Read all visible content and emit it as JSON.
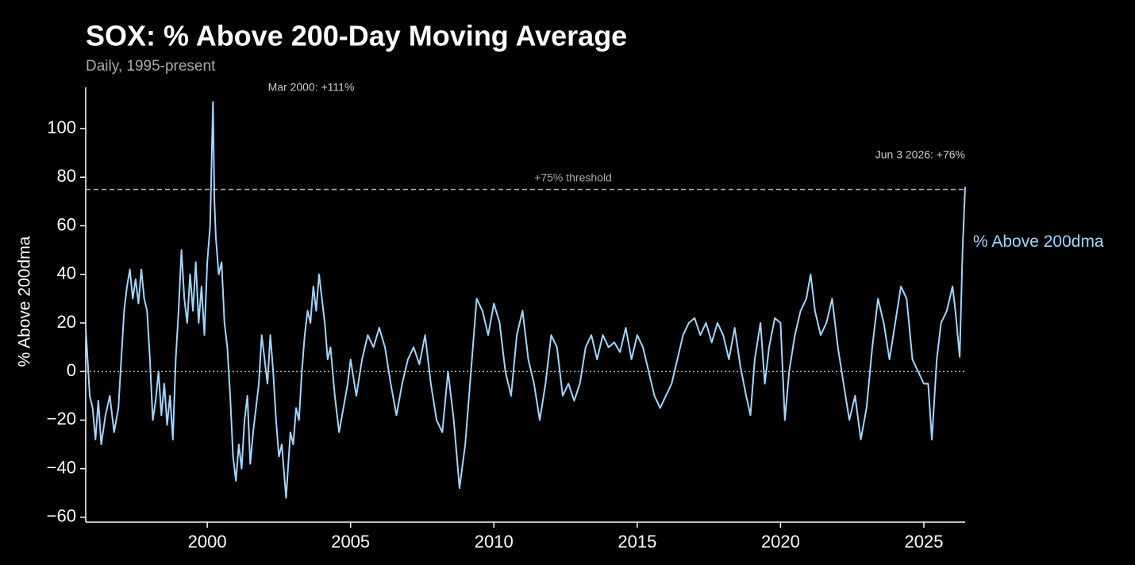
{
  "chart_data": {
    "type": "line",
    "title": "SOX: % Above 200-Day Moving Average",
    "subtitle": "Daily, 1995-present",
    "y_label": "% Above 200dma",
    "annotations": [
      "Mar 2000: +111%",
      "Jun 3 2026: +76%"
    ],
    "hlines": [
      {
        "value": 75,
        "label": "+75% threshold",
        "style": "dashed"
      },
      {
        "value": 0,
        "style": "dotted"
      }
    ],
    "xlim": [
      1995.76,
      2026.44
    ],
    "ylim": [
      -62,
      117
    ],
    "xticks": [
      2000,
      2005,
      2010,
      2015,
      2020,
      2025
    ],
    "yticks": [
      {
        "value": -60,
        "label": "−60"
      },
      {
        "value": -40,
        "label": "−40"
      },
      {
        "value": -20,
        "label": "−20"
      },
      0,
      20,
      40,
      60,
      80,
      100
    ],
    "x": [
      1995.76,
      1995.9,
      1996.0,
      1996.1,
      1996.2,
      1996.3,
      1996.45,
      1996.6,
      1996.75,
      1996.9,
      1997.0,
      1997.1,
      1997.2,
      1997.3,
      1997.4,
      1997.5,
      1997.6,
      1997.7,
      1997.8,
      1997.9,
      1998.0,
      1998.1,
      1998.2,
      1998.3,
      1998.4,
      1998.5,
      1998.6,
      1998.7,
      1998.8,
      1998.9,
      1999.0,
      1999.1,
      1999.2,
      1999.3,
      1999.4,
      1999.5,
      1999.6,
      1999.7,
      1999.8,
      1999.9,
      2000.0,
      2000.1,
      2000.2,
      2000.25,
      2000.3,
      2000.4,
      2000.5,
      2000.6,
      2000.7,
      2000.8,
      2000.9,
      2001.0,
      2001.1,
      2001.2,
      2001.3,
      2001.4,
      2001.5,
      2001.6,
      2001.7,
      2001.8,
      2001.9,
      2002.0,
      2002.1,
      2002.2,
      2002.3,
      2002.4,
      2002.5,
      2002.6,
      2002.75,
      2002.9,
      2003.0,
      2003.1,
      2003.2,
      2003.3,
      2003.4,
      2003.5,
      2003.6,
      2003.7,
      2003.8,
      2003.9,
      2004.0,
      2004.1,
      2004.2,
      2004.3,
      2004.45,
      2004.6,
      2004.75,
      2004.9,
      2005.0,
      2005.2,
      2005.4,
      2005.6,
      2005.8,
      2006.0,
      2006.2,
      2006.4,
      2006.6,
      2006.8,
      2007.0,
      2007.2,
      2007.4,
      2007.6,
      2007.8,
      2008.0,
      2008.2,
      2008.4,
      2008.6,
      2008.8,
      2009.0,
      2009.2,
      2009.4,
      2009.6,
      2009.8,
      2010.0,
      2010.2,
      2010.4,
      2010.6,
      2010.8,
      2011.0,
      2011.2,
      2011.4,
      2011.6,
      2011.8,
      2012.0,
      2012.2,
      2012.4,
      2012.6,
      2012.8,
      2013.0,
      2013.2,
      2013.4,
      2013.6,
      2013.8,
      2014.0,
      2014.2,
      2014.4,
      2014.6,
      2014.8,
      2015.0,
      2015.2,
      2015.4,
      2015.6,
      2015.8,
      2016.0,
      2016.2,
      2016.4,
      2016.6,
      2016.8,
      2017.0,
      2017.2,
      2017.4,
      2017.6,
      2017.8,
      2018.0,
      2018.2,
      2018.4,
      2018.6,
      2018.8,
      2018.95,
      2019.1,
      2019.3,
      2019.45,
      2019.6,
      2019.8,
      2020.0,
      2020.15,
      2020.3,
      2020.5,
      2020.7,
      2020.9,
      2021.05,
      2021.2,
      2021.4,
      2021.6,
      2021.8,
      2022.0,
      2022.2,
      2022.4,
      2022.6,
      2022.8,
      2023.0,
      2023.2,
      2023.4,
      2023.6,
      2023.8,
      2024.0,
      2024.2,
      2024.4,
      2024.6,
      2024.8,
      2025.0,
      2025.15,
      2025.28,
      2025.45,
      2025.6,
      2025.8,
      2026.0,
      2026.1,
      2026.25,
      2026.35,
      2026.44
    ],
    "series": [
      {
        "name": "% Above 200dma",
        "color": "#a3d5ff",
        "values": [
          18,
          -10,
          -15,
          -28,
          -12,
          -30,
          -18,
          -10,
          -25,
          -15,
          5,
          25,
          35,
          42,
          30,
          38,
          28,
          42,
          30,
          25,
          5,
          -20,
          -12,
          0,
          -18,
          -5,
          -22,
          -10,
          -28,
          5,
          25,
          50,
          30,
          20,
          40,
          25,
          45,
          20,
          35,
          15,
          45,
          60,
          111,
          70,
          55,
          40,
          45,
          20,
          10,
          -10,
          -35,
          -45,
          -30,
          -40,
          -20,
          -10,
          -38,
          -25,
          -15,
          -5,
          15,
          5,
          -5,
          15,
          0,
          -20,
          -35,
          -30,
          -52,
          -25,
          -30,
          -15,
          -20,
          0,
          15,
          25,
          20,
          35,
          25,
          40,
          30,
          20,
          5,
          10,
          -10,
          -25,
          -15,
          -5,
          5,
          -10,
          5,
          15,
          10,
          18,
          10,
          -5,
          -18,
          -5,
          5,
          10,
          3,
          15,
          -5,
          -20,
          -25,
          0,
          -20,
          -48,
          -30,
          0,
          30,
          25,
          15,
          28,
          20,
          0,
          -10,
          15,
          25,
          5,
          -5,
          -20,
          -5,
          15,
          10,
          -10,
          -5,
          -12,
          -5,
          10,
          15,
          5,
          15,
          10,
          12,
          8,
          18,
          5,
          15,
          10,
          0,
          -10,
          -15,
          -10,
          -5,
          5,
          15,
          20,
          22,
          15,
          20,
          12,
          20,
          15,
          5,
          18,
          2,
          -10,
          -18,
          5,
          20,
          -5,
          10,
          22,
          20,
          -20,
          0,
          15,
          25,
          30,
          40,
          25,
          15,
          20,
          30,
          10,
          -5,
          -20,
          -10,
          -28,
          -15,
          10,
          30,
          20,
          5,
          20,
          35,
          30,
          5,
          0,
          -5,
          -5,
          -28,
          5,
          20,
          25,
          35,
          25,
          6,
          50,
          76
        ]
      }
    ]
  }
}
